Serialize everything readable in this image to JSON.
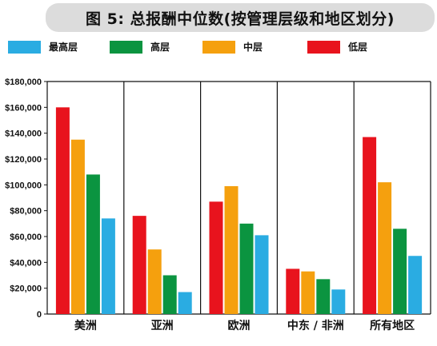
{
  "chart_data": {
    "type": "bar",
    "title": "图 5: 总报酬中位数(按管理层级和地区划分)",
    "categories": [
      "美洲",
      "亚洲",
      "欧洲",
      "中东 / 非洲",
      "所有地区"
    ],
    "series": [
      {
        "name": "低层",
        "color": "#e8131d",
        "values": [
          160000,
          76000,
          87000,
          35000,
          137000
        ]
      },
      {
        "name": "中层",
        "color": "#f5a00e",
        "values": [
          135000,
          50000,
          99000,
          33000,
          102000
        ]
      },
      {
        "name": "高层",
        "color": "#0b9440",
        "values": [
          108000,
          30000,
          70000,
          27000,
          66000
        ]
      },
      {
        "name": "最高层",
        "color": "#2aace2",
        "values": [
          74000,
          17000,
          61000,
          19000,
          45000
        ]
      }
    ],
    "legend_order": [
      "最高层",
      "高层",
      "中层",
      "低层"
    ],
    "y_ticks": [
      "0",
      "$20,000",
      "$40,000",
      "$60,000",
      "$80,000",
      "$100,000",
      "$120,000",
      "$140,000",
      "$160,000",
      "$180,000"
    ],
    "ylim": [
      0,
      180000
    ],
    "grid": "vertical separators",
    "legend_position": "top"
  }
}
